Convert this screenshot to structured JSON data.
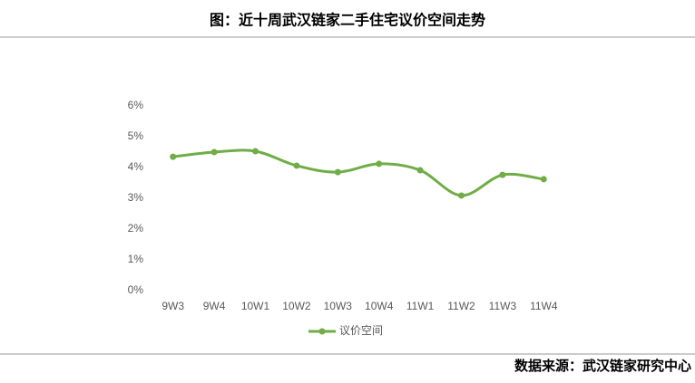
{
  "chart_data": {
    "type": "line",
    "title": "图：近十周武汉链家二手住宅议价空间走势",
    "source": "数据来源：武汉链家研究中心",
    "categories": [
      "9W3",
      "9W4",
      "10W1",
      "10W2",
      "10W3",
      "10W4",
      "11W1",
      "11W2",
      "11W3",
      "11W4"
    ],
    "series": [
      {
        "name": "议价空间",
        "color": "#70ad47",
        "values": [
          4.35,
          4.5,
          4.53,
          4.06,
          3.85,
          4.12,
          3.91,
          3.09,
          3.76,
          3.62
        ]
      }
    ],
    "ylim": [
      0,
      6
    ],
    "yticks": [
      {
        "value": 0,
        "label": "0%"
      },
      {
        "value": 1,
        "label": "1%"
      },
      {
        "value": 2,
        "label": "2%"
      },
      {
        "value": 3,
        "label": "3%"
      },
      {
        "value": 4,
        "label": "4%"
      },
      {
        "value": 5,
        "label": "5%"
      },
      {
        "value": 6,
        "label": "6%"
      }
    ],
    "grid": false,
    "legend": "bottom"
  }
}
